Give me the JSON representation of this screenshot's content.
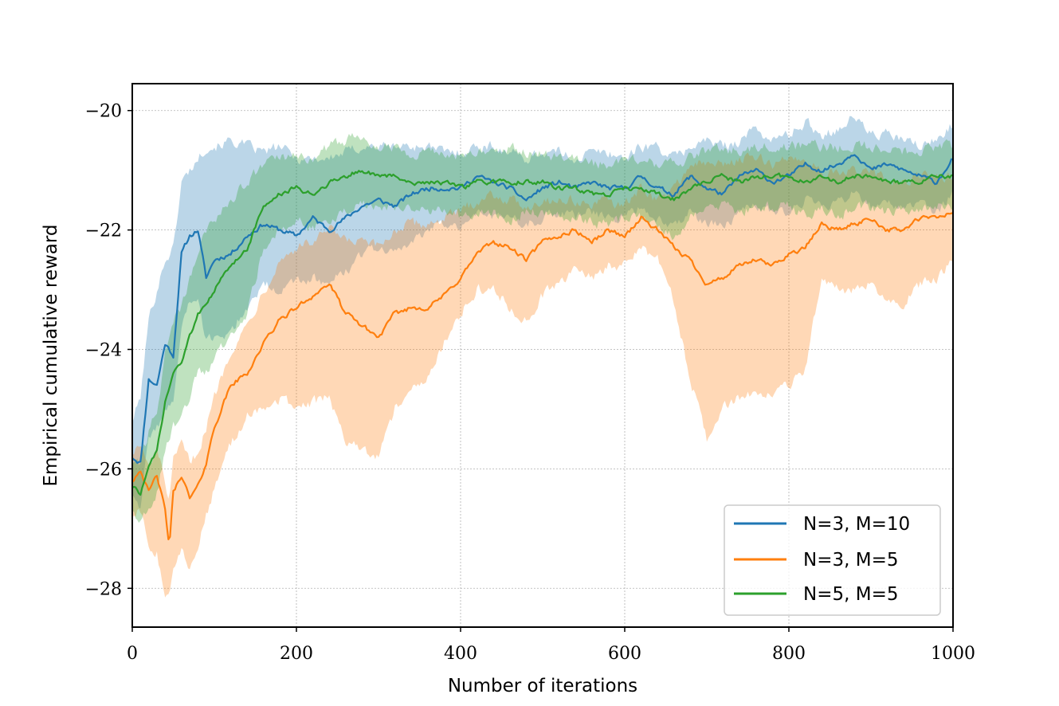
{
  "chart_data": {
    "type": "line",
    "title": "",
    "xlabel": "Number of iterations",
    "ylabel": "Empirical cumulative reward",
    "xlim": [
      0,
      1000
    ],
    "ylim": [
      -28.65,
      -19.55
    ],
    "xticks": [
      0,
      200,
      400,
      600,
      800,
      1000
    ],
    "xtick_labels": [
      "0",
      "200",
      "400",
      "600",
      "800",
      "1000"
    ],
    "yticks": [
      -20,
      -22,
      -24,
      -26,
      -28
    ],
    "ytick_labels": [
      "−20",
      "−22",
      "−24",
      "−26",
      "−28"
    ],
    "grid": true,
    "legend_position": "lower-right",
    "series": [
      {
        "name": "N=3, M=10",
        "color": "#1f77b4",
        "x": [
          0,
          10,
          20,
          30,
          40,
          50,
          60,
          70,
          80,
          90,
          100,
          120,
          140,
          160,
          180,
          200,
          220,
          240,
          260,
          280,
          300,
          320,
          340,
          360,
          380,
          400,
          420,
          440,
          460,
          480,
          500,
          520,
          540,
          560,
          580,
          600,
          620,
          640,
          660,
          680,
          700,
          720,
          740,
          760,
          780,
          800,
          820,
          840,
          860,
          880,
          900,
          920,
          940,
          960,
          980,
          1000
        ],
        "y": [
          -25.8,
          -25.9,
          -24.5,
          -24.6,
          -23.9,
          -24.1,
          -22.4,
          -22.1,
          -22.0,
          -22.8,
          -22.5,
          -22.4,
          -22.1,
          -21.9,
          -22.0,
          -22.1,
          -21.8,
          -22.0,
          -21.8,
          -21.6,
          -21.5,
          -21.6,
          -21.4,
          -21.3,
          -21.3,
          -21.3,
          -21.1,
          -21.2,
          -21.3,
          -21.5,
          -21.3,
          -21.2,
          -21.3,
          -21.2,
          -21.3,
          -21.3,
          -21.1,
          -21.3,
          -21.4,
          -21.1,
          -21.3,
          -21.4,
          -21.1,
          -21.0,
          -21.2,
          -21.1,
          -20.9,
          -21.0,
          -20.9,
          -20.7,
          -21.0,
          -20.9,
          -21.0,
          -21.1,
          -21.2,
          -20.8
        ],
        "band_upper": [
          -25.2,
          -24.8,
          -23.5,
          -23.0,
          -22.5,
          -22.3,
          -21.2,
          -21.0,
          -20.8,
          -20.6,
          -20.6,
          -20.5,
          -20.6,
          -20.7,
          -20.6,
          -20.8,
          -20.8,
          -20.8,
          -20.7,
          -20.6,
          -20.6,
          -20.6,
          -20.6,
          -20.6,
          -20.7,
          -20.7,
          -20.6,
          -20.6,
          -20.7,
          -20.8,
          -20.7,
          -20.7,
          -20.8,
          -20.7,
          -20.7,
          -20.8,
          -20.6,
          -20.6,
          -20.8,
          -20.6,
          -20.5,
          -20.6,
          -20.5,
          -20.3,
          -20.5,
          -20.4,
          -20.2,
          -20.4,
          -20.3,
          -20.1,
          -20.4,
          -20.4,
          -20.5,
          -20.6,
          -20.5,
          -20.2
        ],
        "band_lower": [
          -26.4,
          -26.6,
          -25.5,
          -25.3,
          -25.0,
          -24.9,
          -23.6,
          -23.2,
          -23.2,
          -23.9,
          -23.8,
          -23.7,
          -23.3,
          -22.9,
          -23.0,
          -22.9,
          -22.8,
          -22.9,
          -22.7,
          -22.4,
          -22.3,
          -22.4,
          -22.2,
          -22.0,
          -21.9,
          -21.9,
          -21.7,
          -21.8,
          -21.8,
          -21.9,
          -21.8,
          -21.7,
          -21.8,
          -21.7,
          -21.8,
          -21.8,
          -21.6,
          -21.8,
          -21.9,
          -21.7,
          -21.9,
          -21.9,
          -21.7,
          -21.6,
          -21.7,
          -21.7,
          -21.5,
          -21.6,
          -21.5,
          -21.4,
          -21.6,
          -21.5,
          -21.6,
          -21.6,
          -21.7,
          -21.4
        ]
      },
      {
        "name": "N=3, M=5",
        "color": "#ff7f0e",
        "x": [
          0,
          10,
          20,
          30,
          40,
          45,
          50,
          60,
          70,
          80,
          90,
          100,
          120,
          140,
          160,
          180,
          200,
          220,
          240,
          260,
          280,
          300,
          320,
          340,
          360,
          380,
          400,
          420,
          440,
          460,
          480,
          500,
          520,
          540,
          560,
          580,
          600,
          620,
          640,
          660,
          680,
          700,
          720,
          740,
          760,
          780,
          800,
          820,
          840,
          860,
          880,
          900,
          920,
          940,
          960,
          980,
          1000
        ],
        "y": [
          -26.2,
          -26.0,
          -26.4,
          -26.1,
          -26.7,
          -27.3,
          -26.4,
          -26.1,
          -26.5,
          -26.3,
          -25.9,
          -25.3,
          -24.6,
          -24.4,
          -23.9,
          -23.5,
          -23.3,
          -23.1,
          -22.9,
          -23.4,
          -23.6,
          -23.8,
          -23.4,
          -23.3,
          -23.3,
          -23.1,
          -22.8,
          -22.4,
          -22.2,
          -22.3,
          -22.5,
          -22.2,
          -22.1,
          -22.0,
          -22.2,
          -22.0,
          -22.1,
          -21.8,
          -22.0,
          -22.3,
          -22.5,
          -22.9,
          -22.8,
          -22.6,
          -22.5,
          -22.6,
          -22.4,
          -22.3,
          -21.9,
          -22.0,
          -21.9,
          -21.8,
          -22.0,
          -22.0,
          -21.8,
          -21.8,
          -21.7
        ],
        "band_upper": [
          -25.7,
          -25.6,
          -26.0,
          -25.7,
          -26.2,
          -26.6,
          -25.9,
          -25.6,
          -25.9,
          -25.7,
          -25.3,
          -24.8,
          -24.0,
          -23.6,
          -23.0,
          -22.5,
          -22.3,
          -22.2,
          -22.0,
          -22.2,
          -22.2,
          -22.3,
          -22.0,
          -21.9,
          -21.9,
          -21.8,
          -21.7,
          -21.5,
          -21.4,
          -21.5,
          -21.6,
          -21.5,
          -21.5,
          -21.5,
          -21.6,
          -21.5,
          -21.6,
          -21.3,
          -21.5,
          -21.3,
          -20.9,
          -20.9,
          -20.9,
          -20.8,
          -20.8,
          -20.9,
          -20.8,
          -20.8,
          -21.0,
          -21.1,
          -21.0,
          -21.0,
          -21.2,
          -21.2,
          -21.1,
          -21.1,
          -21.1
        ],
        "band_lower": [
          -26.8,
          -26.7,
          -27.3,
          -27.4,
          -28.1,
          -28.1,
          -27.6,
          -27.4,
          -27.6,
          -27.3,
          -26.8,
          -26.3,
          -25.6,
          -25.1,
          -25.0,
          -24.8,
          -25.0,
          -24.9,
          -24.8,
          -25.5,
          -25.7,
          -25.8,
          -25.0,
          -24.7,
          -24.4,
          -23.9,
          -23.4,
          -23.0,
          -23.0,
          -23.3,
          -23.5,
          -23.1,
          -22.9,
          -22.7,
          -22.8,
          -22.6,
          -22.6,
          -22.3,
          -22.5,
          -23.2,
          -24.5,
          -25.5,
          -25.0,
          -24.8,
          -24.7,
          -24.8,
          -24.6,
          -24.3,
          -22.8,
          -23.0,
          -23.0,
          -22.9,
          -23.2,
          -23.2,
          -22.9,
          -22.8,
          -22.5
        ]
      },
      {
        "name": "N=5, M=5",
        "color": "#2ca02c",
        "x": [
          0,
          10,
          20,
          30,
          40,
          50,
          60,
          70,
          80,
          90,
          100,
          120,
          140,
          160,
          180,
          200,
          220,
          240,
          260,
          280,
          300,
          320,
          340,
          360,
          380,
          400,
          420,
          440,
          460,
          480,
          500,
          520,
          540,
          560,
          580,
          600,
          620,
          640,
          660,
          680,
          700,
          720,
          740,
          760,
          780,
          800,
          820,
          840,
          860,
          880,
          900,
          920,
          940,
          960,
          980,
          1000
        ],
        "y": [
          -26.3,
          -26.4,
          -26.0,
          -25.7,
          -24.9,
          -24.4,
          -24.2,
          -23.8,
          -23.4,
          -23.2,
          -23.0,
          -22.6,
          -22.3,
          -21.6,
          -21.4,
          -21.3,
          -21.4,
          -21.2,
          -21.1,
          -21.0,
          -21.1,
          -21.1,
          -21.2,
          -21.2,
          -21.2,
          -21.3,
          -21.2,
          -21.2,
          -21.2,
          -21.2,
          -21.2,
          -21.3,
          -21.3,
          -21.4,
          -21.4,
          -21.3,
          -21.3,
          -21.4,
          -21.5,
          -21.3,
          -21.2,
          -21.1,
          -21.2,
          -21.1,
          -21.1,
          -21.1,
          -21.2,
          -21.1,
          -21.2,
          -21.1,
          -21.1,
          -21.2,
          -21.2,
          -21.2,
          -21.1,
          -21.1
        ],
        "band_upper": [
          -25.9,
          -25.9,
          -25.4,
          -25.0,
          -24.1,
          -23.5,
          -23.3,
          -22.8,
          -22.4,
          -22.0,
          -21.8,
          -21.5,
          -21.2,
          -20.9,
          -20.8,
          -20.8,
          -20.8,
          -20.6,
          -20.5,
          -20.4,
          -20.6,
          -20.6,
          -20.7,
          -20.7,
          -20.7,
          -20.8,
          -20.7,
          -20.7,
          -20.6,
          -20.7,
          -20.7,
          -20.8,
          -20.8,
          -20.9,
          -20.9,
          -20.8,
          -20.8,
          -20.9,
          -20.9,
          -20.8,
          -20.7,
          -20.6,
          -20.7,
          -20.6,
          -20.6,
          -20.6,
          -20.6,
          -20.6,
          -20.6,
          -20.6,
          -20.6,
          -20.7,
          -20.7,
          -20.7,
          -20.6,
          -20.6
        ],
        "band_lower": [
          -26.7,
          -26.9,
          -26.6,
          -26.4,
          -25.7,
          -25.3,
          -25.1,
          -24.8,
          -24.4,
          -24.4,
          -24.2,
          -23.7,
          -23.4,
          -22.3,
          -22.0,
          -21.8,
          -22.0,
          -21.8,
          -21.7,
          -21.6,
          -21.6,
          -21.6,
          -21.7,
          -21.7,
          -21.7,
          -21.8,
          -21.7,
          -21.7,
          -21.8,
          -21.7,
          -21.7,
          -21.8,
          -21.8,
          -21.9,
          -21.9,
          -21.8,
          -21.8,
          -21.9,
          -22.1,
          -21.8,
          -21.7,
          -21.6,
          -21.7,
          -21.6,
          -21.6,
          -21.6,
          -21.8,
          -21.6,
          -21.8,
          -21.6,
          -21.6,
          -21.7,
          -21.7,
          -21.7,
          -21.6,
          -21.6
        ]
      }
    ]
  }
}
